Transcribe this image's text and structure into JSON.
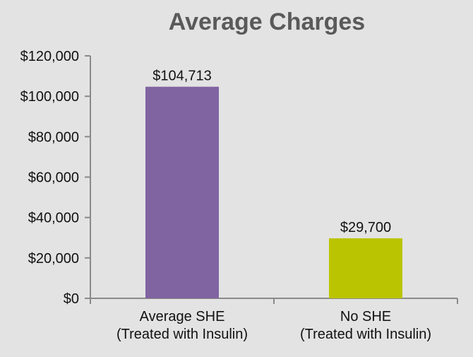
{
  "colors": {
    "background": "#e3e3e3",
    "axis": "#8a8a8a",
    "title": "#5a5a5a",
    "text": "#111111"
  },
  "chart_data": {
    "type": "bar",
    "title": "Average Charges",
    "xlabel": "",
    "ylabel": "",
    "ylim": [
      0,
      120000
    ],
    "y_ticks": [
      0,
      20000,
      40000,
      60000,
      80000,
      100000,
      120000
    ],
    "y_tick_labels": [
      "$0",
      "$20,000",
      "$40,000",
      "$60,000",
      "$80,000",
      "$100,000",
      "$120,000"
    ],
    "grid": false,
    "categories": [
      [
        "Average SHE",
        "(Treated with Insulin)"
      ],
      [
        "No SHE",
        "(Treated with Insulin)"
      ]
    ],
    "values": [
      104713,
      29700
    ],
    "data_labels": [
      "$104,713",
      "$29,700"
    ],
    "bar_colors": [
      "#8064a2",
      "#bbc400"
    ]
  }
}
